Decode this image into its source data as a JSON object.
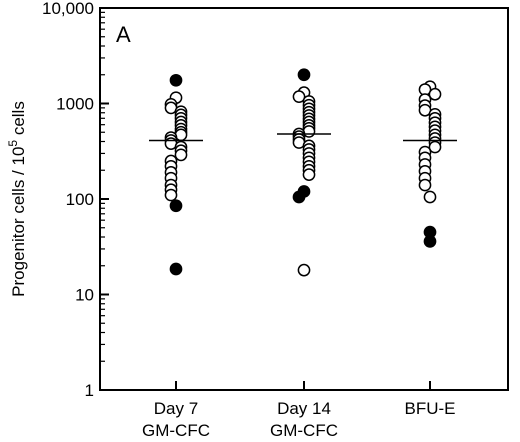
{
  "chart_data": {
    "type": "scatter",
    "panel_label": "A",
    "ylabel": {
      "prefix": "Progenitor cells / 10",
      "superscript": "5",
      "suffix": " cells"
    },
    "y_scale": "log",
    "ylim": [
      1,
      10000
    ],
    "y_ticks": [
      {
        "value": 1,
        "label": "1"
      },
      {
        "value": 10,
        "label": "10"
      },
      {
        "value": 100,
        "label": "100"
      },
      {
        "value": 1000,
        "label": "1000"
      },
      {
        "value": 10000,
        "label": "10,000"
      }
    ],
    "categories": [
      {
        "lines": [
          "Day 7",
          "GM-CFC"
        ]
      },
      {
        "lines": [
          "Day 14",
          "GM-CFC"
        ]
      },
      {
        "lines": [
          "BFU-E"
        ]
      }
    ],
    "means": [
      410,
      480,
      410
    ],
    "groups": [
      {
        "filled": [
          1750,
          85,
          18.5
        ],
        "open": [
          1150,
          980,
          900,
          820,
          760,
          700,
          640,
          590,
          540,
          500,
          470,
          440,
          410,
          380,
          350,
          320,
          290,
          250,
          220,
          190,
          165,
          140,
          125,
          110
        ]
      },
      {
        "filled": [
          2000,
          120,
          105
        ],
        "open": [
          1300,
          1180,
          1050,
          960,
          880,
          810,
          750,
          690,
          640,
          590,
          550,
          510,
          480,
          450,
          420,
          390,
          360,
          330,
          300,
          270,
          245,
          220,
          200,
          180,
          18
        ]
      },
      {
        "filled": [
          45,
          36
        ],
        "open": [
          1500,
          1400,
          1250,
          1100,
          950,
          850,
          770,
          700,
          630,
          570,
          520,
          470,
          430,
          390,
          350,
          310,
          270,
          230,
          195,
          165,
          140,
          105
        ]
      }
    ]
  }
}
